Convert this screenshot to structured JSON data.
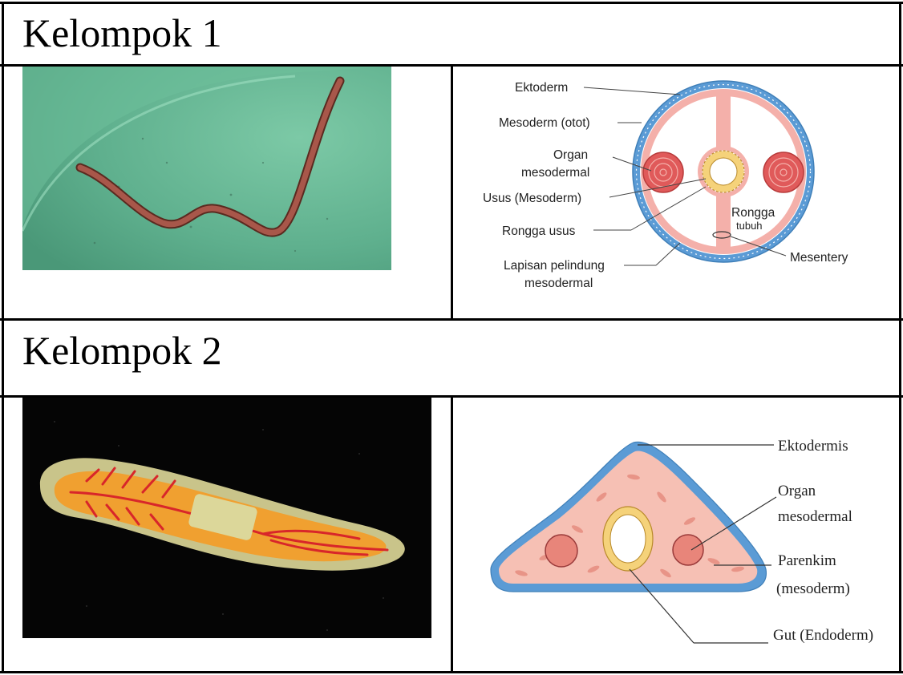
{
  "groups": [
    {
      "title": "Kelompok 1",
      "diagram_labels": {
        "ektoderm": "Ektoderm",
        "mesoderm_otot": "Mesoderm (otot)",
        "organ_l1": "Organ",
        "organ_l2": "mesodermal",
        "usus": "Usus (Mesoderm)",
        "rongga_usus": "Rongga usus",
        "lapisan_l1": "Lapisan pelindung",
        "lapisan_l2": "mesodermal",
        "rongga_tubuh_l1": "Rongga",
        "rongga_tubuh_l2": "tubuh",
        "mesentery": "Mesentery"
      }
    },
    {
      "title": "Kelompok 2",
      "diagram_labels": {
        "ektodermis": "Ektodermis",
        "organ_l1": "Organ",
        "organ_l2": "mesodermal",
        "parenkim_l1": "Parenkim",
        "parenkim_l2": "(mesoderm)",
        "gut": "Gut (Endoderm)"
      }
    }
  ],
  "colors": {
    "ectoderm_blue": "#5b9bd5",
    "mesoderm_pink": "#f2a7a7",
    "muscle_red": "#d9534f",
    "gut_yellow": "#f5d27a",
    "photo1_bg": "#5fb08e",
    "photo2_bg": "#050505"
  }
}
